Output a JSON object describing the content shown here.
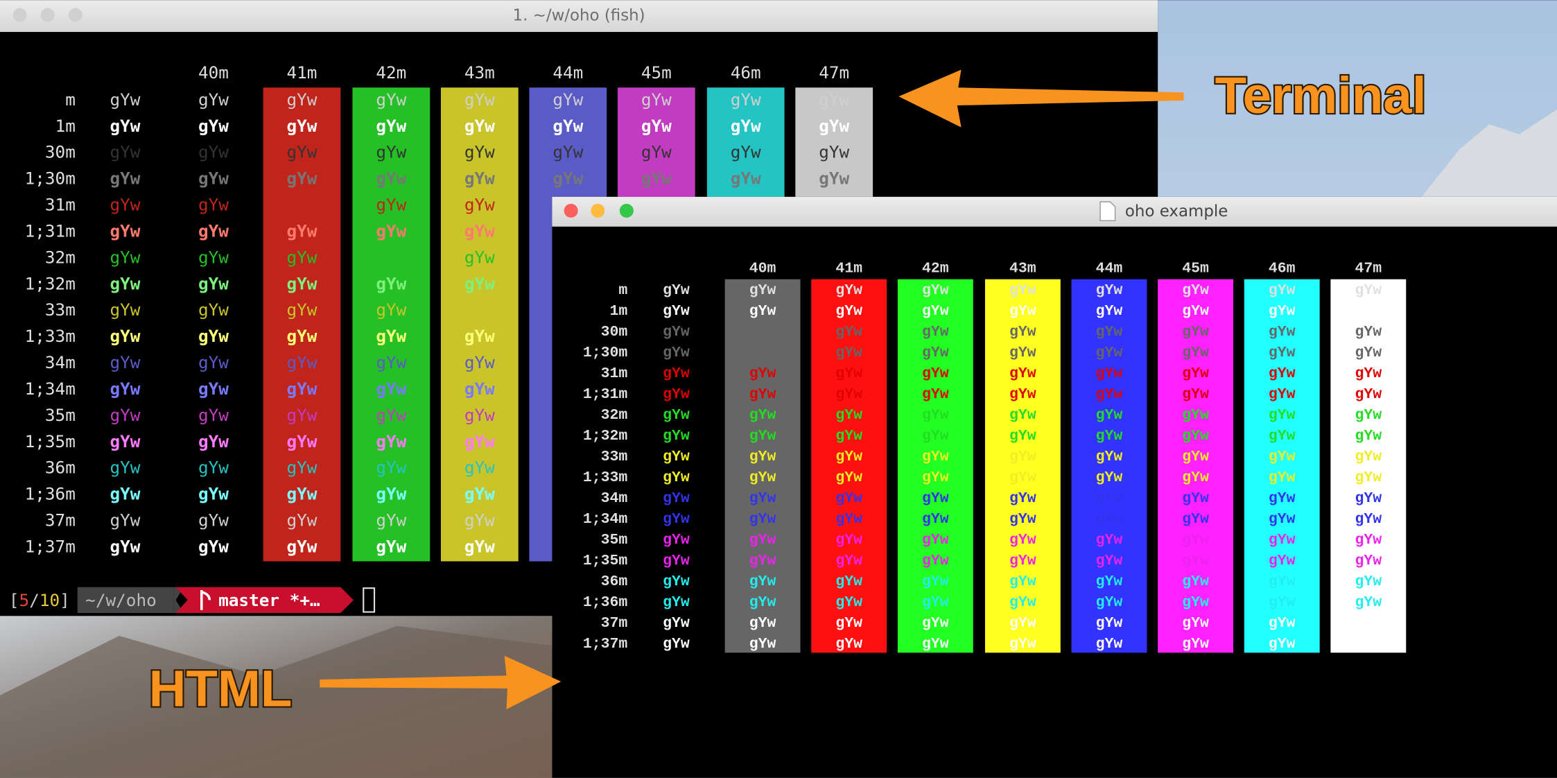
{
  "terminal": {
    "title": "1. ~/w/oho (fish)",
    "columns": [
      "40m",
      "41m",
      "42m",
      "43m",
      "44m",
      "45m",
      "46m",
      "47m"
    ],
    "rows": [
      "m",
      "1m",
      "30m",
      "1;30m",
      "31m",
      "1;31m",
      "32m",
      "1;32m",
      "33m",
      "1;33m",
      "34m",
      "1;34m",
      "35m",
      "1;35m",
      "36m",
      "1;36m",
      "37m",
      "1;37m"
    ],
    "sample": "gYw",
    "prompt": {
      "open": "[",
      "job": "5",
      "sep": "/",
      "total": "10",
      "close": "]",
      "path": "~/w/oho",
      "branch": "master *+…"
    }
  },
  "html_window": {
    "title": "oho example",
    "columns": [
      "40m",
      "41m",
      "42m",
      "43m",
      "44m",
      "45m",
      "46m",
      "47m"
    ],
    "rows": [
      "m",
      "1m",
      "30m",
      "1;30m",
      "31m",
      "1;31m",
      "32m",
      "1;32m",
      "33m",
      "1;33m",
      "34m",
      "1;34m",
      "35m",
      "1;35m",
      "36m",
      "1;36m",
      "37m",
      "1;37m"
    ],
    "sample": "gYw"
  },
  "annotations": {
    "terminal": "Terminal",
    "html": "HTML"
  }
}
